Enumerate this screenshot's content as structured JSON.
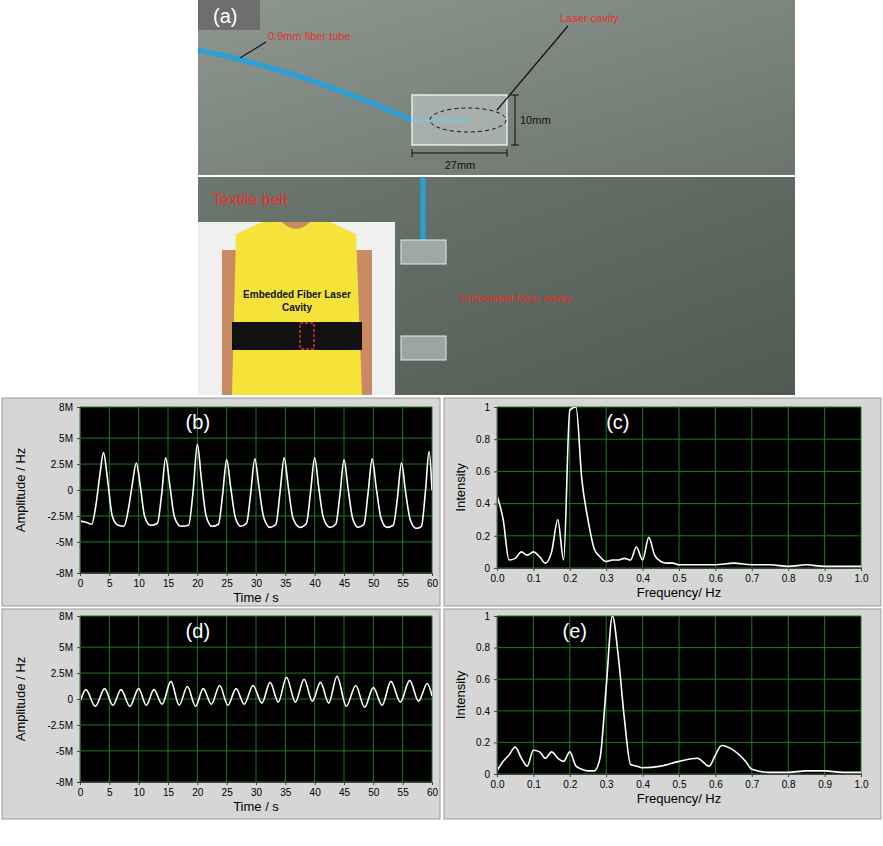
{
  "photo_panel": {
    "label": "(a)",
    "fiber_tube": "0.9mm fiber tube",
    "laser_cavity": "Laser cavity",
    "height_dim": "10mm",
    "length_dim": "27mm",
    "textile_belt": "Textile belt",
    "embedded_cavity": "Embedded laser cavity",
    "inset_text": "Embedded Fiber Laser Cavity"
  },
  "chart_data": [
    {
      "type": "line",
      "title": "(b)",
      "x_label": "Time / s",
      "y_label": "Amplitude / Hz",
      "color": "#ffffff",
      "grid": true,
      "xlim": [
        0,
        60
      ],
      "xticks": [
        0,
        5,
        10,
        15,
        20,
        25,
        30,
        35,
        40,
        45,
        50,
        55,
        60
      ],
      "ylim": [
        -8000000,
        8000000
      ],
      "yticks": [
        {
          "value": -8000000,
          "label": "-8M"
        },
        {
          "value": -5000000,
          "label": "-5M"
        },
        {
          "value": -2500000,
          "label": "-2.5M"
        },
        0,
        {
          "value": 2500000,
          "label": "2.5M"
        },
        {
          "value": 5000000,
          "label": "5M"
        },
        {
          "value": 8000000,
          "label": "8M"
        }
      ],
      "x": [
        0,
        1,
        2,
        2.7,
        3.4,
        4,
        4.7,
        5.5,
        6.5,
        7.5,
        8.2,
        8.9,
        9.6,
        10.3,
        11,
        12,
        13.2,
        13.9,
        14.6,
        15.3,
        16.1,
        17.2,
        18.5,
        19.3,
        20,
        20.7,
        21.5,
        22.5,
        23.6,
        24.3,
        25,
        25.7,
        26.5,
        27.4,
        28.4,
        29.1,
        29.8,
        30.5,
        31.3,
        32.4,
        33.4,
        34.1,
        34.8,
        35.5,
        36.3,
        37.5,
        38.6,
        39.3,
        40,
        40.7,
        41.5,
        42.6,
        43.6,
        44.3,
        45,
        45.7,
        46.5,
        47.4,
        48.4,
        49.1,
        49.8,
        50.5,
        51.3,
        52.3,
        53.4,
        54.1,
        54.8,
        55.5,
        56.3,
        57.3,
        58.2,
        58.9,
        59.5,
        60
      ],
      "values": [
        -3000000,
        -3100000,
        -3300000,
        -1500000,
        1500000,
        3600000,
        1000000,
        -2500000,
        -3400000,
        -3500000,
        -2000000,
        500000,
        2600000,
        300000,
        -2500000,
        -3400000,
        -3200000,
        -500000,
        3100000,
        500000,
        -2600000,
        -3500000,
        -3400000,
        0,
        4400000,
        1000000,
        -2500000,
        -3500000,
        -3300000,
        -500000,
        2900000,
        200000,
        -2700000,
        -3500000,
        -3200000,
        -300000,
        3000000,
        300000,
        -2600000,
        -3600000,
        -3300000,
        -200000,
        3100000,
        300000,
        -2700000,
        -3600000,
        -3200000,
        -200000,
        3100000,
        200000,
        -2700000,
        -3600000,
        -3300000,
        -500000,
        2900000,
        100000,
        -2800000,
        -3600000,
        -3300000,
        -300000,
        3000000,
        200000,
        -2700000,
        -3600000,
        -3400000,
        -800000,
        2600000,
        -200000,
        -2900000,
        -3700000,
        -3500000,
        0,
        3700000,
        0
      ]
    },
    {
      "type": "line",
      "title": "(c)",
      "x_label": "Frequency/ Hz",
      "y_label": "Intensity",
      "color": "#ffffff",
      "grid": true,
      "xlim": [
        0,
        1
      ],
      "xticks": [
        {
          "value": 0,
          "label": "0.0"
        },
        0.1,
        0.2,
        0.3,
        0.4,
        0.5,
        0.6,
        0.7,
        0.8,
        0.9,
        {
          "value": 1,
          "label": "1.0"
        }
      ],
      "ylim": [
        0,
        1
      ],
      "yticks": [
        0,
        0.2,
        0.4,
        0.6,
        0.8,
        1
      ],
      "x": [
        0,
        0.017,
        0.033,
        0.05,
        0.067,
        0.083,
        0.1,
        0.117,
        0.133,
        0.15,
        0.167,
        0.183,
        0.2,
        0.217,
        0.233,
        0.25,
        0.267,
        0.283,
        0.3,
        0.317,
        0.333,
        0.35,
        0.367,
        0.383,
        0.4,
        0.417,
        0.433,
        0.45,
        0.467,
        0.483,
        0.5,
        0.55,
        0.6,
        0.65,
        0.7,
        0.75,
        0.8,
        0.85,
        0.9,
        0.95,
        1
      ],
      "values": [
        0.45,
        0.3,
        0.05,
        0.06,
        0.1,
        0.08,
        0.1,
        0.07,
        0.03,
        0.1,
        0.3,
        0.05,
        0.98,
        1,
        0.55,
        0.3,
        0.12,
        0.07,
        0.04,
        0.05,
        0.05,
        0.06,
        0.05,
        0.13,
        0.05,
        0.19,
        0.08,
        0.04,
        0.03,
        0.03,
        0.02,
        0.02,
        0.02,
        0.03,
        0.02,
        0.02,
        0.01,
        0.02,
        0.01,
        0.01,
        0.01
      ]
    },
    {
      "type": "line",
      "title": "(d)",
      "x_label": "Time / s",
      "y_label": "Amplitude / Hz",
      "color": "#ffffff",
      "grid": true,
      "xlim": [
        0,
        60
      ],
      "xticks": [
        0,
        5,
        10,
        15,
        20,
        25,
        30,
        35,
        40,
        45,
        50,
        55,
        60
      ],
      "ylim": [
        -8000000,
        8000000
      ],
      "yticks": [
        {
          "value": -8000000,
          "label": "-8M"
        },
        {
          "value": -5000000,
          "label": "-5M"
        },
        {
          "value": -2500000,
          "label": "-2.5M"
        },
        0,
        {
          "value": 2500000,
          "label": "2.5M"
        },
        {
          "value": 5000000,
          "label": "5M"
        },
        {
          "value": 8000000,
          "label": "8M"
        }
      ],
      "x": [
        0,
        1,
        2.6,
        4.2,
        5.6,
        7,
        8.5,
        10,
        11.3,
        12.6,
        14,
        15.5,
        16.9,
        18.3,
        19.7,
        21,
        22.4,
        23.8,
        25.2,
        26.6,
        28,
        29.5,
        31,
        32.4,
        33.8,
        35.2,
        36.7,
        38.2,
        39.6,
        41,
        42.4,
        43.8,
        45.4,
        47,
        48.5,
        50,
        51.5,
        53,
        54.6,
        56.2,
        57.7,
        59.2,
        60
      ],
      "values": [
        -300000,
        900000,
        -700000,
        1000000,
        -600000,
        900000,
        -700000,
        1000000,
        -600000,
        900000,
        -500000,
        1700000,
        -600000,
        1200000,
        -700000,
        1000000,
        -500000,
        1300000,
        -600000,
        1000000,
        -500000,
        1300000,
        -400000,
        1600000,
        -300000,
        2100000,
        -300000,
        1900000,
        -200000,
        1600000,
        -400000,
        2200000,
        -700000,
        1300000,
        -800000,
        1100000,
        -600000,
        1700000,
        -300000,
        1800000,
        -200000,
        1500000,
        300000
      ]
    },
    {
      "type": "line",
      "title": "(e)",
      "x_label": "Frequency/ Hz",
      "y_label": "Intensity",
      "color": "#ffffff",
      "grid": true,
      "xlim": [
        0,
        1
      ],
      "xticks": [
        {
          "value": 0,
          "label": "0.0"
        },
        0.1,
        0.2,
        0.3,
        0.4,
        0.5,
        0.6,
        0.7,
        0.8,
        0.9,
        {
          "value": 1,
          "label": "1.0"
        }
      ],
      "ylim": [
        0,
        1
      ],
      "yticks": [
        0,
        0.2,
        0.4,
        0.6,
        0.8,
        1
      ],
      "x": [
        0,
        0.017,
        0.033,
        0.05,
        0.067,
        0.083,
        0.1,
        0.117,
        0.133,
        0.15,
        0.167,
        0.183,
        0.2,
        0.217,
        0.233,
        0.25,
        0.267,
        0.283,
        0.3,
        0.317,
        0.333,
        0.35,
        0.367,
        0.383,
        0.4,
        0.45,
        0.5,
        0.55,
        0.583,
        0.6,
        0.617,
        0.65,
        0.683,
        0.7,
        0.75,
        0.8,
        0.85,
        0.9,
        0.95,
        1
      ],
      "values": [
        0.02,
        0.08,
        0.12,
        0.17,
        0.1,
        0.05,
        0.15,
        0.14,
        0.1,
        0.14,
        0.1,
        0.08,
        0.14,
        0.05,
        0.03,
        0.02,
        0.02,
        0.1,
        0.55,
        1,
        0.75,
        0.35,
        0.06,
        0.05,
        0.04,
        0.05,
        0.08,
        0.1,
        0.05,
        0.12,
        0.18,
        0.15,
        0.08,
        0.03,
        0.01,
        0.01,
        0.02,
        0.02,
        0.01,
        0.01
      ]
    }
  ]
}
